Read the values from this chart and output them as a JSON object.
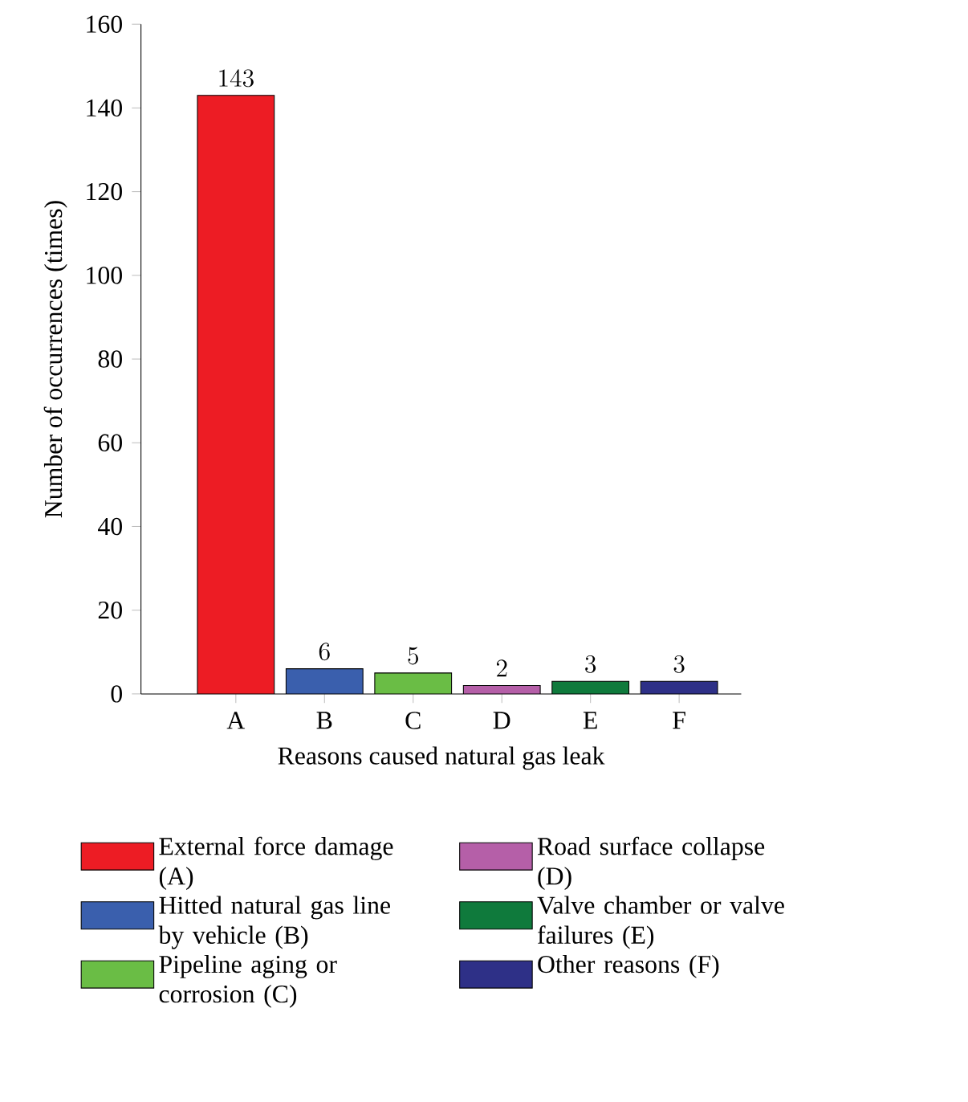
{
  "chart_data": {
    "type": "bar",
    "xlabel": "Reasons caused natural gas leak",
    "ylabel": "Number of occurrences (times)",
    "categories": [
      "A",
      "B",
      "C",
      "D",
      "E",
      "F"
    ],
    "series": [
      {
        "name": "External force damage (A)",
        "color": "#ed1c24",
        "values": [
          143,
          null,
          null,
          null,
          null,
          null
        ]
      },
      {
        "name": "Hitted natural gas line by vehicle (B)",
        "color": "#3a5fad",
        "values": [
          null,
          6,
          null,
          null,
          null,
          null
        ]
      },
      {
        "name": "Pipeline aging or corrosion (C)",
        "color": "#6abd45",
        "values": [
          null,
          null,
          5,
          null,
          null,
          null
        ]
      },
      {
        "name": "Road surface collapse (D)",
        "color": "#b55fa8",
        "values": [
          null,
          null,
          null,
          2,
          null,
          null
        ]
      },
      {
        "name": "Valve chamber or valve failures (E)",
        "color": "#0f7a3c",
        "values": [
          null,
          null,
          null,
          null,
          3,
          null
        ]
      },
      {
        "name": "Other reasons (F)",
        "color": "#2e3087",
        "values": [
          null,
          null,
          null,
          null,
          null,
          3
        ]
      }
    ],
    "ylim": [
      0,
      160
    ],
    "yticks": [
      0,
      20,
      40,
      60,
      80,
      100,
      120,
      140,
      160
    ],
    "data_labels": true,
    "legend": "bottom",
    "grid": false
  }
}
